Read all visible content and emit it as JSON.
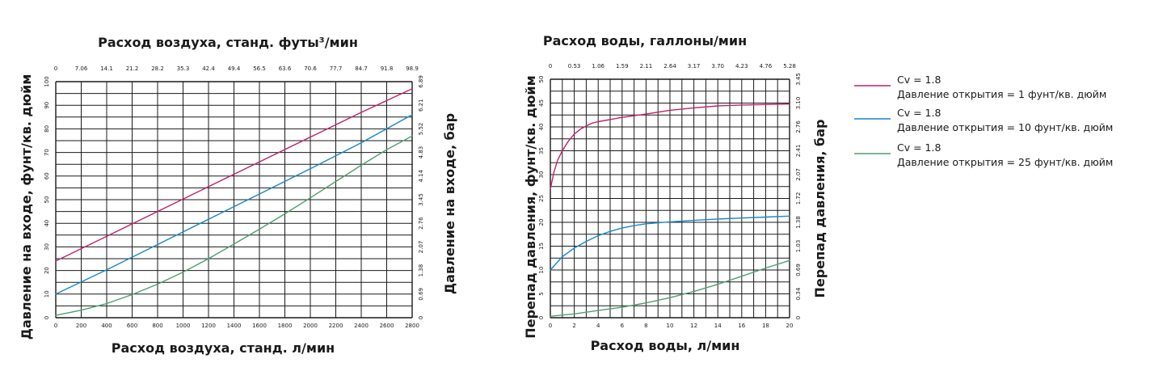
{
  "chart_data": [
    {
      "type": "line",
      "title": "Расход воздуха, станд. футы³/мин",
      "xlabel": "Расход воздуха, станд. л/мин",
      "ylabel": "Давление на входе, фунт/кв. дюйм",
      "ylabel_right": "Давление на входе, бар",
      "xlim": [
        0,
        2800
      ],
      "ylim": [
        0,
        100
      ],
      "grid": true,
      "x_ticks": [
        "0",
        "200",
        "400",
        "600",
        "800",
        "1000",
        "1200",
        "1400",
        "1600",
        "1800",
        "2000",
        "2200",
        "2400",
        "2600",
        "2800"
      ],
      "x_top_ticks": [
        "0",
        "7.06",
        "14.1",
        "21.2",
        "28.2",
        "35.3",
        "42.4",
        "49.4",
        "56.5",
        "63.6",
        "70.6",
        "77.7",
        "84.7",
        "91.8",
        "98.9"
      ],
      "y_ticks": [
        "0",
        "10",
        "20",
        "30",
        "40",
        "50",
        "60",
        "70",
        "80",
        "90",
        "100"
      ],
      "y_right_ticks": [
        "0",
        "0.69",
        "1.38",
        "2.07",
        "2.76",
        "3.45",
        "4.14",
        "4.83",
        "5.52",
        "6.21",
        "6.89"
      ],
      "series": [
        {
          "name": "Cv = 1.8 / Давление открытия = 1 фунт/кв. дюйм",
          "color": "#c0206e",
          "x": [
            0,
            400,
            800,
            1200,
            1600,
            2000,
            2400,
            2800
          ],
          "y": [
            24,
            34.5,
            45,
            55.5,
            66,
            76.5,
            87,
            97
          ]
        },
        {
          "name": "Cv = 1.8 / Давление открытия = 10 фунт/кв. дюйм",
          "color": "#1a87c8",
          "x": [
            0,
            400,
            800,
            1200,
            1600,
            2000,
            2400,
            2800
          ],
          "y": [
            10,
            20.3,
            31,
            41.7,
            52.4,
            63.1,
            74.1,
            86
          ]
        },
        {
          "name": "Cv = 1.8 / Давление открытия = 25 фунт/кв. дюйм",
          "color": "#4f9e6e",
          "x": [
            0,
            200,
            400,
            600,
            800,
            1000,
            1200,
            1400,
            1600,
            1800,
            2000,
            2200,
            2400,
            2600,
            2800
          ],
          "y": [
            1,
            3.2,
            6,
            9.8,
            14.2,
            19.3,
            25,
            31.2,
            37.5,
            44,
            50.8,
            57.7,
            64.6,
            71.2,
            77
          ]
        }
      ]
    },
    {
      "type": "line",
      "title": "Расход воды, галлоны/мин",
      "xlabel": "Расход воды, л/мин",
      "ylabel": "Перепад давления, фунт/кв. дюйм",
      "ylabel_right": "Перепад давления, бар",
      "xlim": [
        0,
        20
      ],
      "ylim": [
        0,
        50
      ],
      "grid": true,
      "x_ticks": [
        "0",
        "2",
        "4",
        "6",
        "8",
        "10",
        "12",
        "14",
        "16",
        "18",
        "20"
      ],
      "x_top_ticks": [
        "0",
        "0.53",
        "1.06",
        "1.59",
        "2.11",
        "2.64",
        "3.17",
        "3.70",
        "4.23",
        "4.76",
        "5.28"
      ],
      "y_ticks": [
        "0",
        "5",
        "10",
        "15",
        "20",
        "25",
        "30",
        "35",
        "40",
        "45",
        "50"
      ],
      "y_right_ticks": [
        "0",
        "0.34",
        "0.69",
        "1.03",
        "1.38",
        "1.72",
        "2.07",
        "2.41",
        "2.76",
        "3.10",
        "3.45"
      ],
      "series": [
        {
          "name": "Cv = 1.8 / Давление открытия = 1 фунт/кв. дюйм",
          "color": "#c0206e",
          "x": [
            0,
            0.3,
            0.6,
            1,
            1.5,
            2,
            2.5,
            3,
            3.5,
            4,
            6,
            8,
            10,
            12,
            14,
            16,
            18,
            20
          ],
          "y": [
            27,
            30.5,
            33,
            35,
            37,
            38.5,
            39.5,
            40.2,
            40.8,
            41.1,
            42,
            42.7,
            43.5,
            44,
            44.4,
            44.6,
            44.7,
            44.8
          ]
        },
        {
          "name": "Cv = 1.8 / Давление открытия = 10 фунт/кв. дюйм",
          "color": "#1a87c8",
          "x": [
            0,
            1,
            2,
            3,
            4,
            5,
            6,
            7,
            8,
            10,
            12,
            14,
            16,
            18,
            20
          ],
          "y": [
            10,
            12.8,
            14.6,
            16,
            17.2,
            18.1,
            18.8,
            19.3,
            19.7,
            20.1,
            20.4,
            20.7,
            20.9,
            21.1,
            21.3
          ]
        },
        {
          "name": "Cv = 1.8 / Давление открытия = 25 фунт/кв. дюйм",
          "color": "#4f9e6e",
          "x": [
            0,
            2,
            4,
            6,
            8,
            10,
            12,
            14,
            16,
            18,
            20
          ],
          "y": [
            0.3,
            0.8,
            1.5,
            2.2,
            3.1,
            4.2,
            5.5,
            7,
            8.7,
            10.4,
            12
          ]
        }
      ]
    }
  ],
  "legend": [
    {
      "line1": "Cv = 1.8",
      "line2": "Давление открытия = 1 фунт/кв. дюйм",
      "color": "#c0206e"
    },
    {
      "line1": "Cv = 1.8",
      "line2": "Давление открытия = 10 фунт/кв. дюйм",
      "color": "#1a87c8"
    },
    {
      "line1": "Cv = 1.8",
      "line2": "Давление открытия = 25 фунт/кв. дюйм",
      "color": "#4f9e6e"
    }
  ]
}
